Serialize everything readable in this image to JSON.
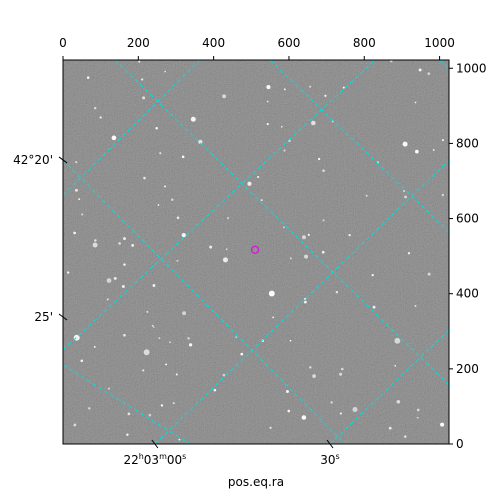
{
  "chart_data": {
    "type": "image",
    "xlabel": "pos.eq.ra",
    "xlim": [
      0,
      1025
    ],
    "ylim": [
      0,
      1022
    ],
    "xticks": [
      0,
      200,
      400,
      600,
      800,
      1000
    ],
    "yticks": [
      0,
      200,
      400,
      600,
      800,
      1000
    ],
    "ra_ticks": [
      {
        "value": 244,
        "label": "22h03m00s"
      },
      {
        "value": 709,
        "label": "30s"
      }
    ],
    "dec_ticks": [
      {
        "value": 756,
        "label": "42°20'"
      },
      {
        "value": 338,
        "label": "25'"
      }
    ],
    "grid_color": "#00dede",
    "marker": {
      "x": 510,
      "y": 517,
      "color": "#d020d0"
    }
  }
}
